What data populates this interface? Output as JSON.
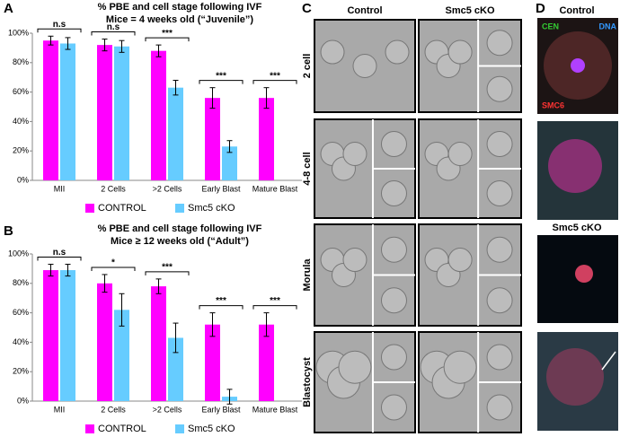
{
  "chart_data": [
    {
      "type": "bar",
      "title": "% PBE and cell stage following IVF",
      "subtitle": "Mice = 4 weeks old (“Juvenile”)",
      "categories": [
        "MII",
        "2 Cells",
        ">2 Cells",
        "Early Blast",
        "Mature Blast"
      ],
      "series": [
        {
          "name": "CONTROL",
          "color": "#ff00ff",
          "values": [
            95,
            92,
            88,
            56,
            56
          ],
          "errors": [
            3,
            4,
            4,
            7,
            7
          ]
        },
        {
          "name": "Smc5 cKO",
          "color": "#66ccff",
          "values": [
            93,
            91,
            63,
            23,
            null
          ],
          "errors": [
            4,
            4,
            5,
            4,
            null
          ]
        }
      ],
      "significance": [
        "n.s",
        "n.s",
        "***",
        "***",
        "***"
      ],
      "ylim": [
        0,
        100
      ],
      "yticks": [
        {
          "value": 0,
          "label": "0%"
        },
        {
          "value": 20,
          "label": "20%"
        },
        {
          "value": 40,
          "label": "40%"
        },
        {
          "value": 60,
          "label": "60%"
        },
        {
          "value": 80,
          "label": "80%"
        },
        {
          "value": 100,
          "label": "100%"
        }
      ],
      "grid": false,
      "legend": "bottom"
    },
    {
      "type": "bar",
      "title": "% PBE and cell stage following IVF",
      "subtitle": "Mice ≥ 12 weeks old (“Adult”)",
      "categories": [
        "MII",
        "2 Cells",
        ">2 Cells",
        "Early Blast",
        "Mature Blast"
      ],
      "series": [
        {
          "name": "CONTROL",
          "color": "#ff00ff",
          "values": [
            89,
            80,
            78,
            52,
            52
          ],
          "errors": [
            4,
            6,
            5,
            8,
            8
          ]
        },
        {
          "name": "Smc5 cKO",
          "color": "#66ccff",
          "values": [
            89,
            62,
            43,
            3,
            null
          ],
          "errors": [
            4,
            11,
            10,
            5,
            null
          ]
        }
      ],
      "significance": [
        "n.s",
        "*",
        "***",
        "***",
        "***"
      ],
      "ylim": [
        0,
        100
      ],
      "yticks": [
        {
          "value": 0,
          "label": "0%"
        },
        {
          "value": 20,
          "label": "20%"
        },
        {
          "value": 40,
          "label": "40%"
        },
        {
          "value": 60,
          "label": "60%"
        },
        {
          "value": 80,
          "label": "80%"
        },
        {
          "value": 100,
          "label": "100%"
        }
      ],
      "grid": false,
      "legend": "bottom"
    }
  ],
  "panel_labels": [
    "A",
    "B",
    "C",
    "D"
  ],
  "embryo_panel": {
    "columns": [
      "Control",
      "Smc5 cKO"
    ],
    "rows": [
      "2 cell",
      "4-8 cell",
      "Morula",
      "Blastocyst"
    ]
  },
  "stain_panel": {
    "conditions": [
      "Control",
      "Smc5 cKO"
    ],
    "channels": [
      "CEN",
      "DNA",
      "SMC6"
    ]
  }
}
